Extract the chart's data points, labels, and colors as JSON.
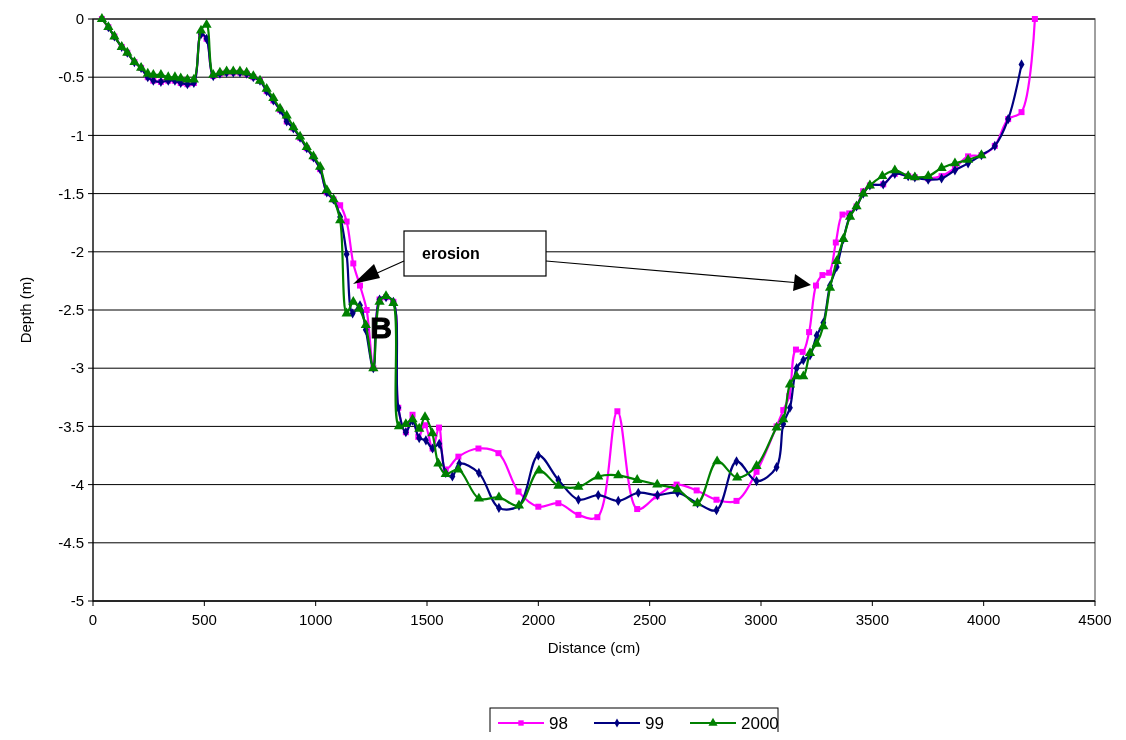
{
  "chart_data": {
    "type": "line",
    "xlabel": "Distance (cm)",
    "ylabel": "Depth (m)",
    "xlim": [
      0,
      4500
    ],
    "xticks": [
      0,
      500,
      1000,
      1500,
      2000,
      2500,
      3000,
      3500,
      4000,
      4500
    ],
    "ylim": [
      -5,
      0
    ],
    "yticks": [
      -5,
      -4.5,
      -4,
      -3.5,
      -3,
      -2.5,
      -2,
      -1.5,
      -1,
      -0.5,
      0
    ],
    "grid": "y",
    "legend": "bottom",
    "annotations": [
      "erosion",
      "B"
    ],
    "series": [
      {
        "name": "98",
        "color": "#ff00ff",
        "marker": "square",
        "x": [
          40,
          69,
          96,
          129,
          154,
          186,
          216,
          246,
          271,
          305,
          338,
          368,
          394,
          424,
          453,
          485,
          510,
          540,
          570,
          600,
          630,
          660,
          690,
          720,
          750,
          780,
          810,
          840,
          870,
          900,
          930,
          960,
          990,
          1020,
          1050,
          1080,
          1110,
          1139,
          1169,
          1199,
          1229,
          1259,
          1287,
          1316,
          1349,
          1371,
          1405,
          1435,
          1461,
          1491,
          1525,
          1554,
          1584,
          1641,
          1731,
          1821,
          1911,
          2000,
          2090,
          2180,
          2265,
          2355,
          2444,
          2531,
          2621,
          2711,
          2800,
          2890,
          2980,
          3070,
          3100,
          3127,
          3157,
          3187,
          3216,
          3247,
          3276,
          3306,
          3336,
          3366,
          3396,
          3429,
          3459,
          3489,
          3549,
          3601,
          3661,
          3691,
          3751,
          3811,
          3871,
          3930,
          3990,
          4050,
          4110,
          4170,
          4230
        ],
        "values": [
          0,
          -0.07,
          -0.15,
          -0.24,
          -0.29,
          -0.37,
          -0.42,
          -0.5,
          -0.53,
          -0.54,
          -0.53,
          -0.53,
          -0.55,
          -0.56,
          -0.55,
          -0.13,
          -0.17,
          -0.49,
          -0.47,
          -0.46,
          -0.46,
          -0.46,
          -0.47,
          -0.5,
          -0.53,
          -0.62,
          -0.7,
          -0.78,
          -0.88,
          -0.94,
          -1.02,
          -1.11,
          -1.19,
          -1.29,
          -1.49,
          -1.55,
          -1.6,
          -1.74,
          -2.1,
          -2.29,
          -2.5,
          -3,
          -2.41,
          -2.39,
          -2.43,
          -3.34,
          -3.55,
          -3.4,
          -3.59,
          -3.49,
          -3.69,
          -3.51,
          -3.87,
          -3.76,
          -3.69,
          -3.73,
          -4.06,
          -4.19,
          -4.16,
          -4.26,
          -4.28,
          -3.37,
          -4.21,
          -4.1,
          -4,
          -4.05,
          -4.13,
          -4.14,
          -3.89,
          -3.5,
          -3.36,
          -3.24,
          -2.84,
          -2.86,
          -2.69,
          -2.29,
          -2.2,
          -2.18,
          -1.92,
          -1.68,
          -1.67,
          -1.61,
          -1.48,
          -1.43,
          -1.42,
          -1.33,
          -1.35,
          -1.36,
          -1.37,
          -1.35,
          -1.28,
          -1.18,
          -1.17,
          -1.09,
          -0.86,
          -0.8,
          0
        ]
      },
      {
        "name": "99",
        "color": "#000080",
        "marker": "diamond",
        "x": [
          69,
          96,
          129,
          154,
          186,
          216,
          246,
          271,
          305,
          338,
          368,
          394,
          424,
          453,
          485,
          510,
          540,
          570,
          600,
          630,
          660,
          690,
          720,
          750,
          780,
          810,
          840,
          870,
          900,
          930,
          960,
          990,
          1020,
          1050,
          1080,
          1110,
          1139,
          1166,
          1199,
          1225,
          1259,
          1287,
          1316,
          1349,
          1371,
          1405,
          1435,
          1465,
          1495,
          1525,
          1555,
          1584,
          1614,
          1645,
          1733,
          1823,
          1913,
          2000,
          2090,
          2180,
          2269,
          2359,
          2449,
          2535,
          2625,
          2715,
          2800,
          2890,
          2980,
          3070,
          3100,
          3130,
          3160,
          3190,
          3220,
          3250,
          3280,
          3310,
          3340,
          3370,
          3400,
          3429,
          3459,
          3489,
          3549,
          3601,
          3661,
          3691,
          3751,
          3811,
          3871,
          3930,
          3990,
          4050,
          4110,
          4170
        ],
        "values": [
          -0.07,
          -0.15,
          -0.24,
          -0.29,
          -0.37,
          -0.42,
          -0.5,
          -0.53,
          -0.54,
          -0.53,
          -0.53,
          -0.55,
          -0.56,
          -0.55,
          -0.13,
          -0.17,
          -0.49,
          -0.47,
          -0.46,
          -0.46,
          -0.46,
          -0.47,
          -0.5,
          -0.53,
          -0.62,
          -0.7,
          -0.78,
          -0.88,
          -0.94,
          -1.02,
          -1.11,
          -1.19,
          -1.29,
          -1.49,
          -1.55,
          -1.7,
          -2.02,
          -2.53,
          -2.46,
          -2.67,
          -3,
          -2.41,
          -2.39,
          -2.43,
          -3.34,
          -3.55,
          -3.45,
          -3.6,
          -3.62,
          -3.69,
          -3.65,
          -3.9,
          -3.93,
          -3.82,
          -3.9,
          -4.2,
          -4.18,
          -3.75,
          -3.96,
          -4.13,
          -4.09,
          -4.14,
          -4.07,
          -4.09,
          -4.07,
          -4.16,
          -4.22,
          -3.8,
          -3.97,
          -3.85,
          -3.48,
          -3.34,
          -3,
          -2.93,
          -2.89,
          -2.72,
          -2.61,
          -2.29,
          -2.13,
          -1.89,
          -1.69,
          -1.61,
          -1.5,
          -1.43,
          -1.42,
          -1.33,
          -1.35,
          -1.36,
          -1.38,
          -1.37,
          -1.3,
          -1.24,
          -1.17,
          -1.09,
          -0.86,
          -0.39
        ]
      },
      {
        "name": "2000",
        "color": "#008000",
        "marker": "triangle",
        "x": [
          40,
          69,
          96,
          129,
          154,
          186,
          216,
          246,
          271,
          305,
          338,
          368,
          394,
          424,
          453,
          485,
          510,
          540,
          570,
          600,
          630,
          660,
          690,
          720,
          750,
          780,
          810,
          840,
          870,
          900,
          930,
          960,
          990,
          1020,
          1050,
          1080,
          1110,
          1139,
          1169,
          1196,
          1225,
          1259,
          1287,
          1316,
          1349,
          1374,
          1405,
          1435,
          1465,
          1491,
          1524,
          1551,
          1584,
          1641,
          1733,
          1823,
          1913,
          2003,
          2090,
          2180,
          2269,
          2359,
          2444,
          2534,
          2624,
          2714,
          2803,
          2893,
          2980,
          3070,
          3100,
          3130,
          3160,
          3190,
          3220,
          3250,
          3280,
          3310,
          3340,
          3370,
          3400,
          3429,
          3459,
          3489,
          3545,
          3601,
          3661,
          3691,
          3751,
          3811,
          3871,
          3930,
          3990
        ],
        "values": [
          0,
          -0.07,
          -0.15,
          -0.24,
          -0.29,
          -0.37,
          -0.42,
          -0.47,
          -0.48,
          -0.48,
          -0.5,
          -0.5,
          -0.51,
          -0.52,
          -0.52,
          -0.1,
          -0.05,
          -0.48,
          -0.46,
          -0.45,
          -0.45,
          -0.45,
          -0.46,
          -0.49,
          -0.53,
          -0.6,
          -0.68,
          -0.77,
          -0.83,
          -0.93,
          -1.01,
          -1.1,
          -1.18,
          -1.27,
          -1.47,
          -1.55,
          -1.73,
          -2.53,
          -2.43,
          -2.49,
          -2.63,
          -3,
          -2.43,
          -2.38,
          -2.44,
          -3.5,
          -3.48,
          -3.44,
          -3.52,
          -3.42,
          -3.56,
          -3.82,
          -3.91,
          -3.87,
          -4.12,
          -4.11,
          -4.18,
          -3.88,
          -4.01,
          -4.02,
          -3.93,
          -3.92,
          -3.96,
          -4,
          -4.04,
          -4.16,
          -3.8,
          -3.94,
          -3.84,
          -3.51,
          -3.44,
          -3.14,
          -3.07,
          -3.07,
          -2.87,
          -2.79,
          -2.64,
          -2.31,
          -2.08,
          -1.89,
          -1.7,
          -1.61,
          -1.5,
          -1.43,
          -1.35,
          -1.3,
          -1.35,
          -1.36,
          -1.35,
          -1.28,
          -1.24,
          -1.21,
          -1.17
        ]
      }
    ]
  }
}
